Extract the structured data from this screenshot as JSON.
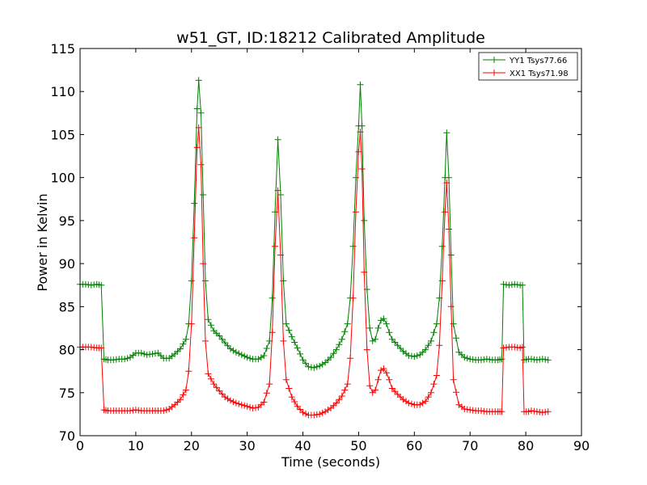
{
  "chart_data": {
    "type": "line",
    "title": "w51_GT, ID:18212 Calibrated Amplitude",
    "xlabel": "Time (seconds)",
    "ylabel": "Power in Kelvin",
    "xlim": [
      0,
      90
    ],
    "ylim": [
      70,
      115
    ],
    "xticks": [
      0,
      10,
      20,
      30,
      40,
      50,
      60,
      70,
      80,
      90
    ],
    "yticks": [
      70,
      75,
      80,
      85,
      90,
      95,
      100,
      105,
      110,
      115
    ],
    "grid": false,
    "legend_position": "top-right",
    "marker": "+",
    "series": [
      {
        "name": "YY1 Tsys77.66",
        "color": "#008000",
        "points": [
          [
            0,
            87.6
          ],
          [
            1,
            87.6
          ],
          [
            2,
            87.5
          ],
          [
            3,
            87.6
          ],
          [
            3.8,
            87.5
          ],
          [
            4.3,
            78.9
          ],
          [
            5,
            78.8
          ],
          [
            6,
            78.8
          ],
          [
            7,
            78.9
          ],
          [
            8,
            78.9
          ],
          [
            9,
            79.1
          ],
          [
            10,
            79.6
          ],
          [
            11,
            79.6
          ],
          [
            12,
            79.4
          ],
          [
            13,
            79.5
          ],
          [
            14,
            79.6
          ],
          [
            15,
            79.0
          ],
          [
            16,
            79.0
          ],
          [
            17,
            79.5
          ],
          [
            18,
            80.1
          ],
          [
            19,
            81.2
          ],
          [
            19.5,
            83.0
          ],
          [
            20,
            88.0
          ],
          [
            20.5,
            97.0
          ],
          [
            21,
            108.0
          ],
          [
            21.3,
            111.3
          ],
          [
            21.7,
            107.5
          ],
          [
            22.1,
            98.0
          ],
          [
            22.5,
            88.0
          ],
          [
            23,
            83.5
          ],
          [
            24,
            82.2
          ],
          [
            25,
            81.6
          ],
          [
            26,
            80.8
          ],
          [
            27,
            80.1
          ],
          [
            28,
            79.7
          ],
          [
            29,
            79.4
          ],
          [
            30,
            79.1
          ],
          [
            31,
            78.9
          ],
          [
            32,
            78.9
          ],
          [
            33,
            79.3
          ],
          [
            34,
            81.0
          ],
          [
            34.5,
            86.0
          ],
          [
            35,
            96.0
          ],
          [
            35.5,
            104.4
          ],
          [
            36,
            98.0
          ],
          [
            36.5,
            88.0
          ],
          [
            37,
            83.0
          ],
          [
            38,
            81.5
          ],
          [
            39,
            80.2
          ],
          [
            40,
            78.8
          ],
          [
            41,
            78.0
          ],
          [
            42,
            77.9
          ],
          [
            43,
            78.1
          ],
          [
            44,
            78.5
          ],
          [
            45,
            79.1
          ],
          [
            46,
            80.0
          ],
          [
            47,
            81.2
          ],
          [
            48,
            83.0
          ],
          [
            48.5,
            86.0
          ],
          [
            49,
            92.0
          ],
          [
            49.5,
            100.0
          ],
          [
            50,
            106.0
          ],
          [
            50.3,
            110.8
          ],
          [
            50.6,
            106.0
          ],
          [
            51,
            95.0
          ],
          [
            51.5,
            87.0
          ],
          [
            52,
            82.5
          ],
          [
            52.5,
            81.0
          ],
          [
            53,
            81.2
          ],
          [
            53.5,
            82.5
          ],
          [
            54,
            83.4
          ],
          [
            54.5,
            83.6
          ],
          [
            55,
            83.0
          ],
          [
            55.5,
            82.0
          ],
          [
            56,
            81.2
          ],
          [
            57,
            80.5
          ],
          [
            58,
            79.8
          ],
          [
            59,
            79.3
          ],
          [
            60,
            79.2
          ],
          [
            61,
            79.4
          ],
          [
            62,
            80.0
          ],
          [
            63,
            81.0
          ],
          [
            64,
            83.0
          ],
          [
            64.5,
            86.0
          ],
          [
            65,
            92.0
          ],
          [
            65.5,
            100.0
          ],
          [
            65.8,
            105.2
          ],
          [
            66.2,
            100.0
          ],
          [
            66.6,
            91.0
          ],
          [
            67,
            83.0
          ],
          [
            68,
            79.7
          ],
          [
            69,
            79.1
          ],
          [
            70,
            78.9
          ],
          [
            71,
            78.8
          ],
          [
            72,
            78.8
          ],
          [
            73,
            78.9
          ],
          [
            74,
            78.8
          ],
          [
            75,
            78.8
          ],
          [
            75.7,
            78.9
          ],
          [
            76,
            87.6
          ],
          [
            77,
            87.5
          ],
          [
            78,
            87.6
          ],
          [
            79,
            87.5
          ],
          [
            79.4,
            87.5
          ],
          [
            79.7,
            78.8
          ],
          [
            80.5,
            78.9
          ],
          [
            81,
            78.9
          ],
          [
            82,
            78.8
          ],
          [
            83,
            78.9
          ],
          [
            84,
            78.8
          ]
        ]
      },
      {
        "name": "XX1 Tsys71.98",
        "color": "#ff0000",
        "points": [
          [
            0,
            80.3
          ],
          [
            1,
            80.3
          ],
          [
            2,
            80.3
          ],
          [
            3,
            80.2
          ],
          [
            3.8,
            80.2
          ],
          [
            4.3,
            73.0
          ],
          [
            5,
            72.9
          ],
          [
            6,
            72.9
          ],
          [
            7,
            72.9
          ],
          [
            8,
            72.9
          ],
          [
            9,
            72.9
          ],
          [
            10,
            73.0
          ],
          [
            11,
            72.9
          ],
          [
            12,
            72.9
          ],
          [
            13,
            72.9
          ],
          [
            14,
            72.9
          ],
          [
            15,
            72.9
          ],
          [
            16,
            73.1
          ],
          [
            17,
            73.6
          ],
          [
            18,
            74.2
          ],
          [
            19,
            75.3
          ],
          [
            19.5,
            77.5
          ],
          [
            20,
            83.0
          ],
          [
            20.5,
            93.0
          ],
          [
            21,
            103.5
          ],
          [
            21.3,
            105.8
          ],
          [
            21.7,
            101.5
          ],
          [
            22.1,
            90.0
          ],
          [
            22.5,
            81.0
          ],
          [
            23,
            77.2
          ],
          [
            24,
            76.0
          ],
          [
            25,
            75.2
          ],
          [
            26,
            74.5
          ],
          [
            27,
            74.1
          ],
          [
            28,
            73.8
          ],
          [
            29,
            73.6
          ],
          [
            30,
            73.4
          ],
          [
            31,
            73.2
          ],
          [
            32,
            73.3
          ],
          [
            33,
            73.9
          ],
          [
            34,
            76.0
          ],
          [
            34.5,
            82.0
          ],
          [
            35,
            92.0
          ],
          [
            35.5,
            98.5
          ],
          [
            36,
            91.0
          ],
          [
            36.5,
            81.0
          ],
          [
            37,
            76.5
          ],
          [
            38,
            74.5
          ],
          [
            39,
            73.4
          ],
          [
            40,
            72.7
          ],
          [
            41,
            72.4
          ],
          [
            42,
            72.4
          ],
          [
            43,
            72.5
          ],
          [
            44,
            72.8
          ],
          [
            45,
            73.2
          ],
          [
            46,
            73.8
          ],
          [
            47,
            74.6
          ],
          [
            48,
            76.0
          ],
          [
            48.5,
            79.0
          ],
          [
            49,
            86.0
          ],
          [
            49.5,
            96.0
          ],
          [
            50,
            103.0
          ],
          [
            50.3,
            105.3
          ],
          [
            50.6,
            101.0
          ],
          [
            51,
            89.0
          ],
          [
            51.5,
            80.0
          ],
          [
            52,
            75.8
          ],
          [
            52.5,
            75.0
          ],
          [
            53,
            75.3
          ],
          [
            53.5,
            76.5
          ],
          [
            54,
            77.6
          ],
          [
            54.5,
            77.8
          ],
          [
            55,
            77.3
          ],
          [
            55.5,
            76.5
          ],
          [
            56,
            75.5
          ],
          [
            57,
            74.8
          ],
          [
            58,
            74.2
          ],
          [
            59,
            73.8
          ],
          [
            60,
            73.6
          ],
          [
            61,
            73.6
          ],
          [
            62,
            74.0
          ],
          [
            63,
            75.0
          ],
          [
            64,
            77.0
          ],
          [
            64.5,
            80.5
          ],
          [
            65,
            88.0
          ],
          [
            65.5,
            96.0
          ],
          [
            65.8,
            99.4
          ],
          [
            66.2,
            94.0
          ],
          [
            66.6,
            85.0
          ],
          [
            67,
            76.5
          ],
          [
            68,
            73.6
          ],
          [
            69,
            73.1
          ],
          [
            70,
            73.0
          ],
          [
            71,
            72.9
          ],
          [
            72,
            72.9
          ],
          [
            73,
            72.8
          ],
          [
            74,
            72.8
          ],
          [
            75,
            72.8
          ],
          [
            75.7,
            72.8
          ],
          [
            76,
            80.2
          ],
          [
            77,
            80.3
          ],
          [
            78,
            80.3
          ],
          [
            79,
            80.2
          ],
          [
            79.4,
            80.3
          ],
          [
            79.7,
            72.8
          ],
          [
            80.5,
            72.8
          ],
          [
            81,
            72.9
          ],
          [
            82,
            72.8
          ],
          [
            83,
            72.7
          ],
          [
            84,
            72.8
          ]
        ]
      }
    ]
  }
}
